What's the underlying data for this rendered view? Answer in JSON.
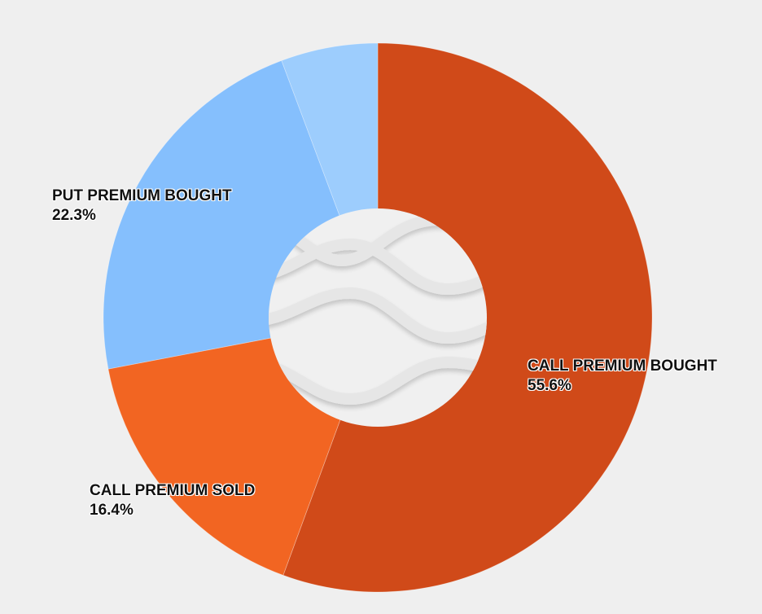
{
  "chart_data": {
    "type": "pie",
    "variant": "donut",
    "title": "",
    "slices": [
      {
        "label": "CALL PREMIUM BOUGHT",
        "value": 55.6,
        "display": "55.6%",
        "color": "#d04a19"
      },
      {
        "label": "CALL PREMIUM SOLD",
        "value": 16.4,
        "display": "16.4%",
        "color": "#f26522"
      },
      {
        "label": "PUT PREMIUM BOUGHT",
        "value": 22.3,
        "display": "22.3%",
        "color": "#85bffd"
      },
      {
        "label": "",
        "value": 5.7,
        "display": "",
        "color": "#9dcdfd"
      }
    ],
    "start_angle_deg": 0,
    "direction": "clockwise",
    "legend": "none",
    "labels_on_slices": true
  },
  "labels": {
    "call_bought": {
      "name": "CALL PREMIUM BOUGHT",
      "pct": "55.6%"
    },
    "call_sold": {
      "name": "CALL PREMIUM SOLD",
      "pct": "16.4%"
    },
    "put_bought": {
      "name": "PUT PREMIUM BOUGHT",
      "pct": "22.3%"
    }
  },
  "colors": {
    "background": "#efefef",
    "hole": "#f0f0f0",
    "wave": "#dcdcdc"
  }
}
